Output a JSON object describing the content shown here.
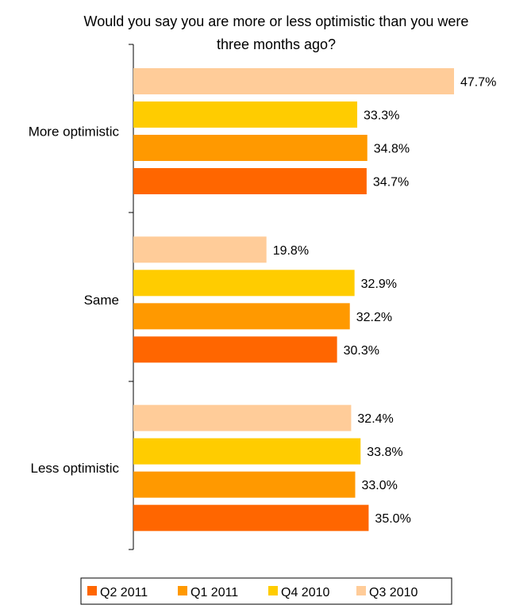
{
  "chart_data": {
    "type": "bar",
    "orientation": "horizontal",
    "title_lines": [
      "Would you say you are more or less optimistic than you were",
      "three months ago?"
    ],
    "categories": [
      "More optimistic",
      "Same",
      "Less optimistic"
    ],
    "series": [
      {
        "name": "Q3 2010",
        "color": "#FFCC99",
        "values": [
          47.7,
          19.8,
          32.4
        ],
        "labels": [
          "47.7%",
          "19.8%",
          "32.4%"
        ]
      },
      {
        "name": "Q4 2010",
        "color": "#FFCC00",
        "values": [
          33.3,
          32.9,
          33.8
        ],
        "labels": [
          "33.3%",
          "32.9%",
          "33.8%"
        ]
      },
      {
        "name": "Q1 2011",
        "color": "#FF9900",
        "values": [
          34.8,
          32.2,
          33.0
        ],
        "labels": [
          "34.8%",
          "32.2%",
          "33.0%"
        ]
      },
      {
        "name": "Q2 2011",
        "color": "#FF6600",
        "values": [
          34.7,
          30.3,
          35.0
        ],
        "labels": [
          "34.7%",
          "30.3%",
          "35.0%"
        ]
      }
    ],
    "legend_order": [
      "Q2 2011",
      "Q1 2011",
      "Q4 2010",
      "Q3 2010"
    ],
    "legend_position": "bottom",
    "xlim": [
      0,
      50
    ],
    "grid": false,
    "value_labels": true
  }
}
